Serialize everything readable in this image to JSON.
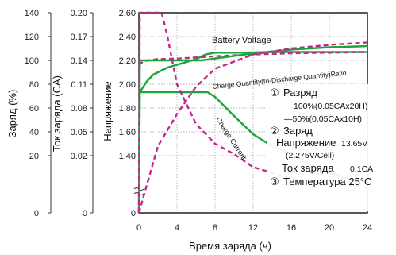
{
  "chart_data": {
    "type": "line",
    "xlabel": "Время заряда (ч)",
    "x_ticks": [
      "0",
      "4",
      "8",
      "12",
      "16",
      "20",
      "24"
    ],
    "xlim": [
      0,
      24
    ],
    "axes": {
      "charge_pct": {
        "label": "Заряд (%)",
        "ticks": [
          "140",
          "120",
          "100",
          "80",
          "60",
          "40",
          "20",
          "0"
        ]
      },
      "current_ca": {
        "label": "Ток заряда (CA)",
        "ticks": [
          "0.20",
          "0.17",
          "0.14",
          "0.11",
          "0.08",
          "0.05",
          "0.02",
          "0"
        ]
      },
      "voltage": {
        "label": "Напряжение",
        "ticks": [
          "2.60",
          "2.40",
          "2.20",
          "2.00",
          "1.80",
          "1.60",
          "1.40",
          "0"
        ],
        "ylim": [
          1.2,
          2.6
        ]
      }
    },
    "annotations": {
      "battery_voltage": "Battery Voltage",
      "charge_quantity": "Charge Quantity(to-Discharge Quantity)Ratio",
      "charge_current": "Charge Current"
    },
    "series": [
      {
        "name": "Battery Voltage",
        "style": "solid",
        "color": "#1aa63a",
        "x": [
          0,
          0.8,
          1.5,
          3,
          4.5,
          6,
          7,
          8,
          10,
          14,
          20,
          24
        ],
        "y": [
          1.92,
          2.02,
          2.08,
          2.14,
          2.175,
          2.21,
          2.25,
          2.265,
          2.265,
          2.27,
          2.27,
          2.27
        ]
      },
      {
        "name": "Battery Voltage",
        "style": "dashed",
        "color": "#c0288a",
        "x": [
          0,
          0.5,
          2,
          4,
          8,
          12,
          16,
          20,
          24
        ],
        "y": [
          2.16,
          2.195,
          2.21,
          2.215,
          2.235,
          2.25,
          2.26,
          2.265,
          2.27
        ]
      },
      {
        "name": "Charge Quantity(to-Discharge Quantity)Ratio",
        "style": "solid",
        "color": "#1aa63a",
        "x": [
          0,
          0.1,
          6.5,
          7.5,
          12,
          16,
          20,
          24
        ],
        "y_pct": [
          0,
          100,
          100,
          101,
          106,
          109,
          111,
          112
        ]
      },
      {
        "name": "Charge Quantity(to-Discharge Quantity)Ratio",
        "style": "dashed",
        "color": "#c0288a",
        "x": [
          0,
          2,
          4,
          6,
          8,
          12,
          16,
          20,
          24
        ],
        "y_pct": [
          0,
          28,
          55,
          78,
          93,
          105,
          110,
          113,
          115
        ]
      },
      {
        "name": "Charge Current",
        "style": "solid",
        "color": "#1aa63a",
        "x": [
          0,
          0.1,
          7.2,
          8,
          10,
          12,
          14,
          16,
          18,
          20,
          22,
          24
        ],
        "y_ca": [
          0,
          0.1,
          0.1,
          0.094,
          0.07,
          0.047,
          0.032,
          0.022,
          0.017,
          0.014,
          0.012,
          0.011
        ]
      },
      {
        "name": "Charge Current",
        "style": "dashed",
        "color": "#c0288a",
        "x": [
          0,
          0.1,
          2.4,
          3,
          4,
          6,
          8,
          10,
          12,
          16,
          20,
          24
        ],
        "y_ca": [
          0,
          0.2,
          0.2,
          0.17,
          0.11,
          0.06,
          0.035,
          0.022,
          0.016,
          0.012,
          0.01,
          0.009
        ]
      }
    ],
    "legend": {
      "c1": "①",
      "discharge": "Разряд",
      "solid_line": "100%(0.05CAx20H)",
      "dash_line": "—50%(0.05CAx10H)",
      "c2": "②",
      "charge": "Заряд",
      "voltage_label": "Напряжение",
      "voltage_value": "13.65V",
      "cell_value": "(2.275V/Cell)",
      "current_label": "Ток заряда",
      "current_value": "0.1CA",
      "c3": "③",
      "temperature": "Температура 25°C"
    }
  }
}
